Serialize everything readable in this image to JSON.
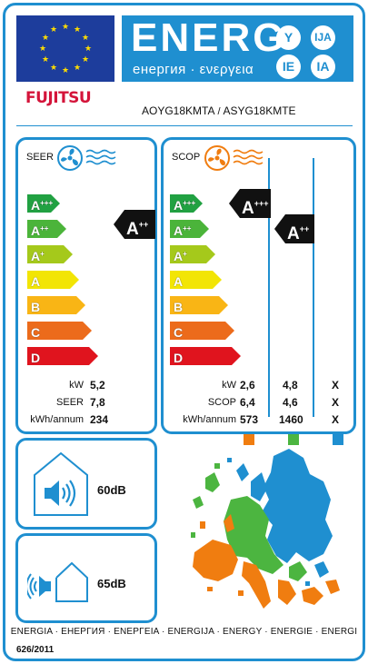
{
  "header": {
    "energ_word": "ENERG",
    "energ_sub": "енергия · ενεργεια",
    "lang_badges": [
      "Y",
      "IJA",
      "IE",
      "IA"
    ],
    "flag_icon": "eu-flag-icon"
  },
  "manufacturer": "FUJITSU",
  "models": {
    "outdoor": "AOYG18KMTA",
    "separator": "/",
    "indoor": "ASYG18KMTE"
  },
  "scale_classes": [
    {
      "label": "A",
      "sup": "+++",
      "color": "#21a142"
    },
    {
      "label": "A",
      "sup": "++",
      "color": "#4bb43a"
    },
    {
      "label": "A",
      "sup": "+",
      "color": "#a5c91b"
    },
    {
      "label": "A",
      "sup": "",
      "color": "#f2e505"
    },
    {
      "label": "B",
      "sup": "",
      "color": "#f9b515"
    },
    {
      "label": "C",
      "sup": "",
      "color": "#ec6b1b"
    },
    {
      "label": "D",
      "sup": "",
      "color": "#e0141e"
    }
  ],
  "seer": {
    "title": "SEER",
    "icon": "cooling-fan-icon",
    "indicator": {
      "label": "A",
      "sup": "++"
    },
    "rows": [
      {
        "key": "kW",
        "value": "5,2"
      },
      {
        "key": "SEER",
        "value": "7,8"
      },
      {
        "key": "kWh/annum",
        "value": "234"
      }
    ]
  },
  "scop": {
    "title": "SCOP",
    "icon": "heating-fan-icon",
    "indicators": [
      {
        "label": "A",
        "sup": "+++"
      },
      {
        "label": "A",
        "sup": "++"
      }
    ],
    "rows": [
      {
        "key": "kW",
        "values": [
          "2,6",
          "4,8",
          "X"
        ]
      },
      {
        "key": "SCOP",
        "values": [
          "6,4",
          "4,6",
          "X"
        ]
      },
      {
        "key": "kWh/annum",
        "values": [
          "573",
          "1460",
          "X"
        ]
      }
    ],
    "zone_colors": [
      "#f07d10",
      "#4cb540",
      "#1f8fd0"
    ]
  },
  "noise": {
    "indoor": {
      "icon": "indoor-speaker-icon",
      "value": "60dB"
    },
    "outdoor": {
      "icon": "outdoor-speaker-icon",
      "value": "65dB"
    }
  },
  "map_icon": "europe-climate-zones-map-icon",
  "footer": {
    "languages": "ENERGIA · ЕНЕРГИЯ · ΕΝΕΡΓΕΙΑ · ENERGIJA · ENERGY · ENERGIE · ENERGI",
    "regulation": "626/2011"
  }
}
